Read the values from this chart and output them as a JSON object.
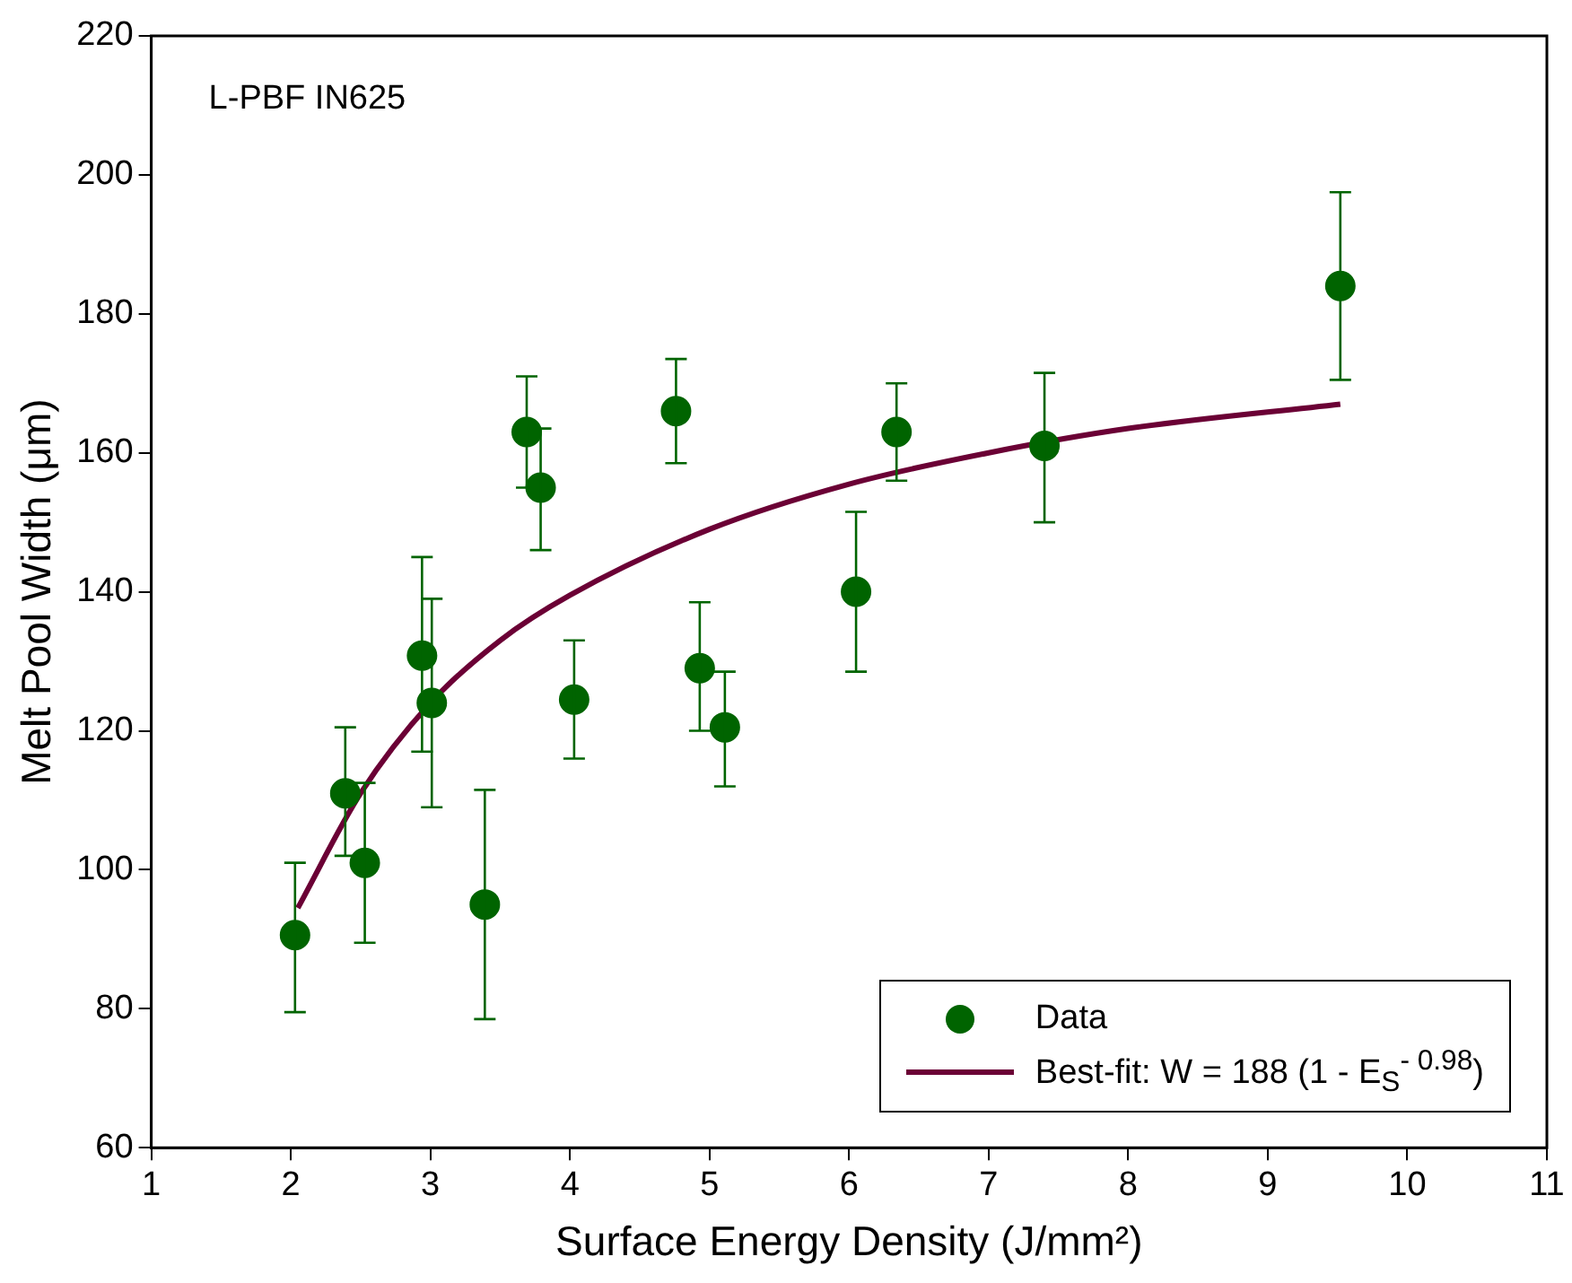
{
  "chart_data": {
    "type": "scatter",
    "xlabel": "Surface Energy Density (J/mm²)",
    "ylabel": "Melt Pool Width (μm)",
    "annotations": [
      "L-PBF IN625"
    ],
    "xlim": [
      1,
      11
    ],
    "xticks": [
      1,
      2,
      3,
      4,
      5,
      6,
      7,
      8,
      9,
      10,
      11
    ],
    "ylim": [
      60,
      220
    ],
    "yticks": [
      60,
      80,
      100,
      120,
      140,
      160,
      180,
      200,
      220
    ],
    "grid": false,
    "legend": "bottom right",
    "marker": "circle",
    "series": [
      {
        "name": "Data",
        "color": "#006400",
        "x": [
          2.03,
          2.39,
          2.53,
          2.94,
          3.01,
          3.39,
          3.69,
          3.79,
          4.03,
          4.76,
          4.93,
          5.11,
          6.05,
          6.34,
          7.4,
          9.52
        ],
        "values": [
          90.6,
          111,
          101,
          130.8,
          124,
          95,
          163,
          155,
          124.5,
          166,
          129,
          120.5,
          140,
          163,
          161,
          184
        ],
        "errors": [
          [
            79.5,
            101
          ],
          [
            102,
            120.5
          ],
          [
            89.5,
            112.5
          ],
          [
            117,
            145
          ],
          [
            109,
            139
          ],
          [
            78.5,
            111.5
          ],
          [
            155,
            171
          ],
          [
            146,
            163.5
          ],
          [
            116,
            133
          ],
          [
            158.5,
            173.5
          ],
          [
            120,
            138.5
          ],
          [
            112,
            128.5
          ],
          [
            128.5,
            151.5
          ],
          [
            156,
            170
          ],
          [
            150,
            171.5
          ],
          [
            170.5,
            197.5
          ]
        ]
      },
      {
        "name": "Best-fit: W = 188 (1 - E$_{S}$$^{- 0.98}$)",
        "type": "line",
        "color": "#6b0035",
        "marker": "none",
        "line_style": "solid",
        "x": [
          2.05,
          2.5,
          3,
          3.5,
          4,
          5,
          6,
          7,
          8,
          9.52
        ],
        "values": [
          94.5,
          111,
          124,
          133,
          139.5,
          149,
          155.5,
          160,
          163.5,
          167
        ]
      }
    ]
  }
}
